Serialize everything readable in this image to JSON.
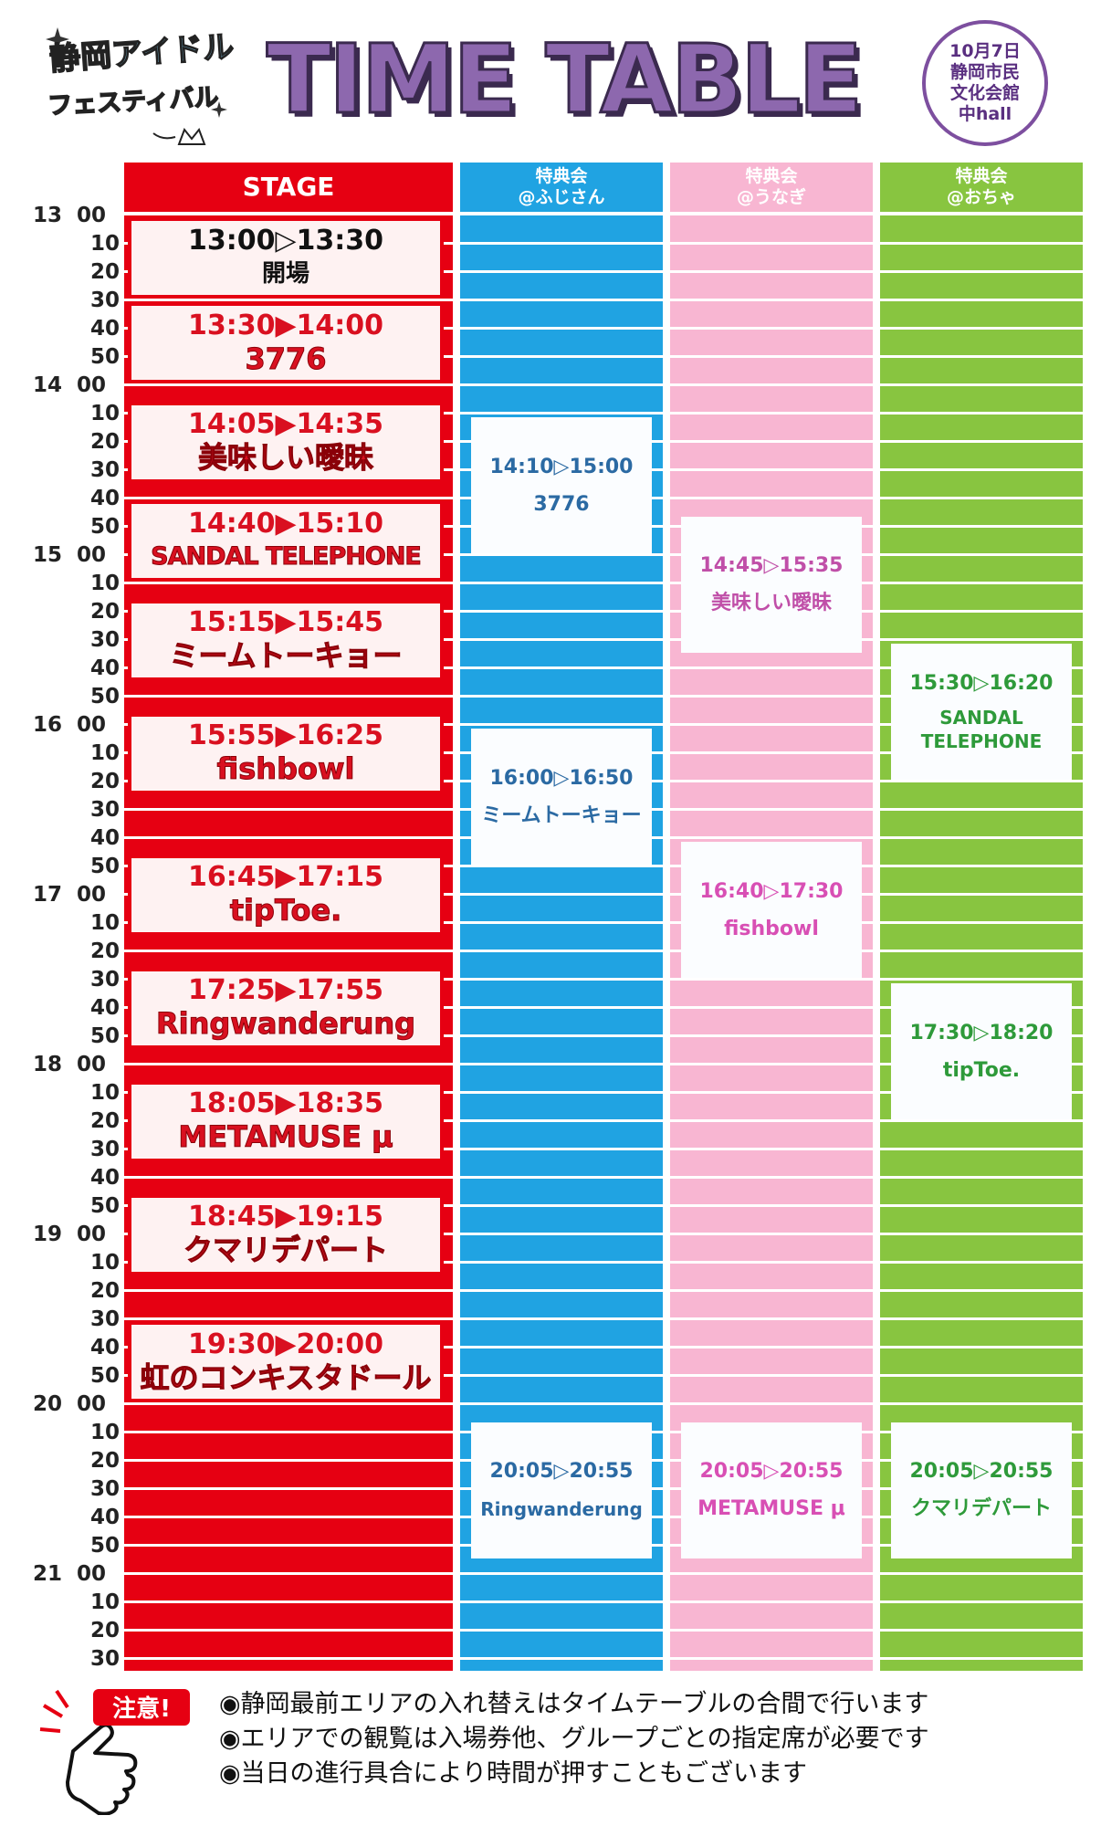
{
  "header": {
    "logo_line1": "静岡アイドル",
    "logo_line2": "フェスティバル",
    "title": "TIME TABLE",
    "venue": [
      "10月7日",
      "静岡市民",
      "文化会館",
      "中hall"
    ]
  },
  "columns": [
    {
      "id": "stage",
      "line1": "STAGE",
      "line2": "",
      "color": "#e60012"
    },
    {
      "id": "fuji",
      "line1": "特典会",
      "line2": "@ふじさん",
      "color": "#20a3e2"
    },
    {
      "id": "unagi",
      "line1": "特典会",
      "line2": "@うなぎ",
      "color": "#f8b6d2"
    },
    {
      "id": "ocha",
      "line1": "特典会",
      "line2": "@おちゃ",
      "color": "#88c540"
    }
  ],
  "time_labels": [
    "13 00",
    "10",
    "20",
    "30",
    "40",
    "50",
    "14 00",
    "10",
    "20",
    "30",
    "40",
    "50",
    "15 00",
    "10",
    "20",
    "30",
    "40",
    "50",
    "16 00",
    "10",
    "20",
    "30",
    "40",
    "50",
    "17 00",
    "10",
    "20",
    "30",
    "40",
    "50",
    "18 00",
    "10",
    "20",
    "30",
    "40",
    "50",
    "19 00",
    "10",
    "20",
    "30",
    "40",
    "50",
    "20 00",
    "10",
    "20",
    "30",
    "40",
    "50",
    "21 00",
    "10",
    "20",
    "30"
  ],
  "stage_events": [
    {
      "start": "13:00",
      "end": "13:30",
      "time": "13:00▷13:30",
      "name": "開場",
      "style": "dark"
    },
    {
      "start": "13:30",
      "end": "14:00",
      "time": "13:30▶14:00",
      "name": "3776"
    },
    {
      "start": "14:05",
      "end": "14:35",
      "time": "14:05▶14:35",
      "name": "美味しい曖昧"
    },
    {
      "start": "14:40",
      "end": "15:10",
      "time": "14:40▶15:10",
      "name": "SANDAL TELEPHONE"
    },
    {
      "start": "15:15",
      "end": "15:45",
      "time": "15:15▶15:45",
      "name": "ミームトーキョー"
    },
    {
      "start": "15:55",
      "end": "16:25",
      "time": "15:55▶16:25",
      "name": "fishbowl"
    },
    {
      "start": "16:45",
      "end": "17:15",
      "time": "16:45▶17:15",
      "name": "tipToe."
    },
    {
      "start": "17:25",
      "end": "17:55",
      "time": "17:25▶17:55",
      "name": "Ringwanderung"
    },
    {
      "start": "18:05",
      "end": "18:35",
      "time": "18:05▶18:35",
      "name": "METAMUSE μ"
    },
    {
      "start": "18:45",
      "end": "19:15",
      "time": "18:45▶19:15",
      "name": "クマリデパート"
    },
    {
      "start": "19:30",
      "end": "20:00",
      "time": "19:30▶20:00",
      "name": "虹のコンキスタドール"
    }
  ],
  "perk_events": [
    {
      "column": "fuji",
      "start": "14:10",
      "end": "15:00",
      "time": "14:10▷15:00",
      "name": "3776",
      "text_color": "#2b6aa3"
    },
    {
      "column": "fuji",
      "start": "16:00",
      "end": "16:50",
      "time": "16:00▷16:50",
      "name": "ミームトーキョー",
      "text_color": "#2b6aa3"
    },
    {
      "column": "fuji",
      "start": "20:05",
      "end": "20:55",
      "time": "20:05▷20:55",
      "name": "Ringwanderung",
      "text_color": "#2b6aa3"
    },
    {
      "column": "unagi",
      "start": "14:45",
      "end": "15:35",
      "time": "14:45▷15:35",
      "name": "美味しい曖昧",
      "text_color": "#c04fa8"
    },
    {
      "column": "unagi",
      "start": "16:40",
      "end": "17:30",
      "time": "16:40▷17:30",
      "name": "fishbowl",
      "text_color": "#d84fb4"
    },
    {
      "column": "unagi",
      "start": "20:05",
      "end": "20:55",
      "time": "20:05▷20:55",
      "name": "METAMUSE μ",
      "text_color": "#d84fb4"
    },
    {
      "column": "ocha",
      "start": "15:30",
      "end": "16:20",
      "time": "15:30▷16:20",
      "name": "SANDAL\nTELEPHONE",
      "text_color": "#2e9a3a"
    },
    {
      "column": "ocha",
      "start": "17:30",
      "end": "18:20",
      "time": "17:30▷18:20",
      "name": "tipToe.",
      "text_color": "#2e9a3a"
    },
    {
      "column": "ocha",
      "start": "20:05",
      "end": "20:55",
      "time": "20:05▷20:55",
      "name": "クマリデパート",
      "text_color": "#2e9a3a"
    }
  ],
  "notice": {
    "badge": "注意!",
    "lines": [
      "◉静岡最前エリアの入れ替えはタイムテーブルの合間で行います",
      "◉エリアでの観覧は入場券他、グループごとの指定席が必要です",
      "◉当日の進行具合により時間が押すこともございます"
    ]
  }
}
